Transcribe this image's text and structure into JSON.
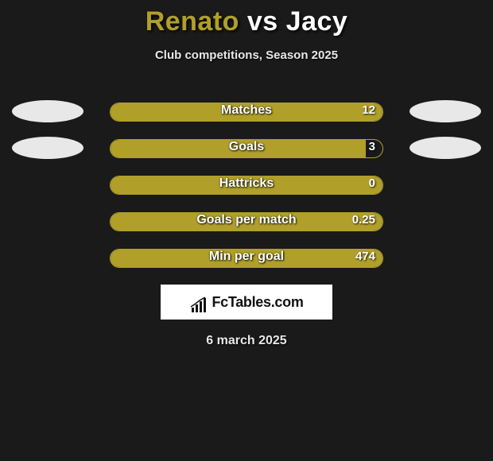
{
  "title": {
    "player1": "Renato",
    "vs": "vs",
    "player2": "Jacy",
    "player1_color": "#b0a02a",
    "vs_color": "#ffffff",
    "player2_color": "#ffffff",
    "fontsize": 34
  },
  "subtitle": {
    "text": "Club competitions, Season 2025",
    "color": "#e8e8e8",
    "fontsize": 15
  },
  "chart": {
    "type": "infographic",
    "background_color": "#1a1a1a",
    "bar_fill_color": "#b0a02a",
    "bar_border_color": "#b0a02a",
    "bar_track_width": 344,
    "bar_track_height": 24,
    "bar_border_radius": 12,
    "side_ellipse_left_color": "#e8e8e8",
    "side_ellipse_right_color": "#e8e8e8",
    "label_color": "#ffffff",
    "label_fontsize": 16,
    "value_color": "#ffffff",
    "value_fontsize": 15,
    "rows": [
      {
        "label": "Matches",
        "value": "12",
        "fill_pct": 100,
        "show_left_ellipse": true,
        "show_right_ellipse": true
      },
      {
        "label": "Goals",
        "value": "3",
        "fill_pct": 94,
        "show_left_ellipse": true,
        "show_right_ellipse": true
      },
      {
        "label": "Hattricks",
        "value": "0",
        "fill_pct": 100,
        "show_left_ellipse": false,
        "show_right_ellipse": false
      },
      {
        "label": "Goals per match",
        "value": "0.25",
        "fill_pct": 100,
        "show_left_ellipse": false,
        "show_right_ellipse": false
      },
      {
        "label": "Min per goal",
        "value": "474",
        "fill_pct": 100,
        "show_left_ellipse": false,
        "show_right_ellipse": false
      }
    ]
  },
  "logo": {
    "text": "FcTables.com",
    "background_color": "#ffffff",
    "text_color": "#111111",
    "fontsize": 18,
    "icon_name": "bar-chart-icon"
  },
  "date": {
    "text": "6 march 2025",
    "color": "#e8e8e8",
    "fontsize": 16
  }
}
